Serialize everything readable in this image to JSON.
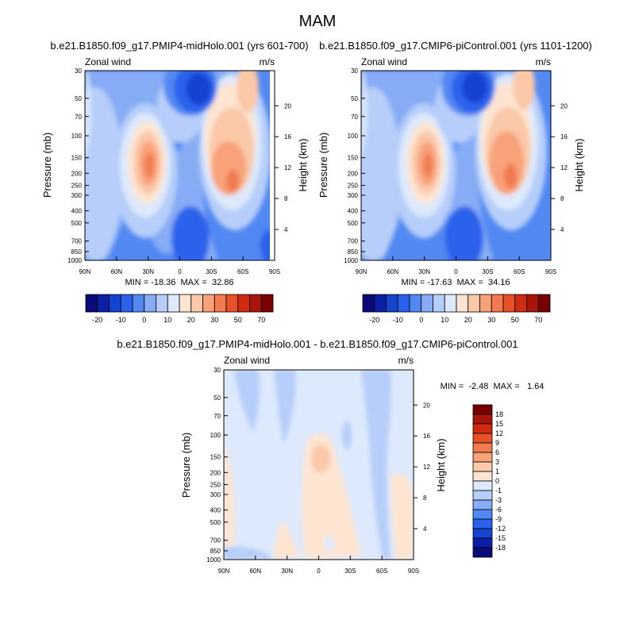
{
  "figure": {
    "season_title": "MAM"
  },
  "scale": {
    "panel_colors": [
      "#0a0a78",
      "#0a1fa6",
      "#1443d0",
      "#2a62ec",
      "#5288f2",
      "#86acf5",
      "#b6cef9",
      "#dde9fc",
      "#fde5d2",
      "#fbc8a8",
      "#f8a27a",
      "#f27a50",
      "#e85128",
      "#d02a10",
      "#a81508",
      "#780000"
    ],
    "panel_levels": [
      -25,
      -20,
      -15,
      -10,
      -5,
      0,
      5,
      10,
      15,
      20,
      25,
      30,
      40,
      50,
      60,
      70
    ],
    "panel_tick_labels": [
      "-20",
      "-10",
      "0",
      "10",
      "20",
      "30",
      "50",
      "70"
    ],
    "diff_colors": [
      "#0a0a78",
      "#0a1fa6",
      "#1443d0",
      "#2a62ec",
      "#5288f2",
      "#86acf5",
      "#b6cef9",
      "#dde9fc",
      "#fde5d2",
      "#fbc8a8",
      "#f8a27a",
      "#f27a50",
      "#e85128",
      "#d02a10",
      "#a81508",
      "#780000"
    ],
    "diff_tick_labels": [
      "18",
      "15",
      "12",
      "9",
      "6",
      "3",
      "1",
      "0",
      "-1",
      "-3",
      "-6",
      "-9",
      "-12",
      "-15",
      "-18"
    ]
  },
  "axes": {
    "y_label": "Pressure (mb)",
    "y2_label": "Height (km)",
    "pressure_ticks": [
      "30",
      "50",
      "70",
      "100",
      "150",
      "200",
      "250",
      "300",
      "400",
      "500",
      "700",
      "850",
      "1000"
    ],
    "height_ticks": [
      "20",
      "16",
      "12",
      "8",
      "4"
    ],
    "lat_ticks": [
      "90N",
      "60N",
      "30N",
      "0",
      "30S",
      "60S",
      "90S"
    ]
  },
  "chart_data": [
    {
      "type": "heatmap",
      "title": "b.e21.B1850.f09_g17.PMIP4-midHolo.001 (yrs 601-700)",
      "left_string": "Zonal wind",
      "right_string": "m/s",
      "min": -18.36,
      "max": 32.86,
      "minmax_label": "MIN = -18.36  MAX =  32.86",
      "xlabel": "",
      "ylabel": "Pressure (mb)",
      "y2label": "Height (km)",
      "xlim": [
        "90N",
        "90S"
      ],
      "ylim": [
        1000,
        30
      ]
    },
    {
      "type": "heatmap",
      "title": "b.e21.B1850.f09_g17.CMIP6-piControl.001 (yrs 1101-1200)",
      "left_string": "Zonal wind",
      "right_string": "m/s",
      "min": -17.63,
      "max": 34.16,
      "minmax_label": "MIN = -17.63  MAX =  34.16",
      "xlabel": "",
      "ylabel": "Pressure (mb)",
      "y2label": "Height (km)",
      "xlim": [
        "90N",
        "90S"
      ],
      "ylim": [
        1000,
        30
      ]
    },
    {
      "type": "heatmap",
      "title": "b.e21.B1850.f09_g17.PMIP4-midHolo.001 - b.e21.B1850.f09_g17.CMIP6-piControl.001",
      "left_string": "Zonal wind",
      "right_string": "m/s",
      "min": -2.48,
      "max": 1.64,
      "minmax_label": "MIN =  -2.48  MAX =   1.64",
      "xlabel": "",
      "ylabel": "Pressure (mb)",
      "y2label": "Height (km)",
      "xlim": [
        "90N",
        "90S"
      ],
      "ylim": [
        1000,
        30
      ]
    }
  ]
}
